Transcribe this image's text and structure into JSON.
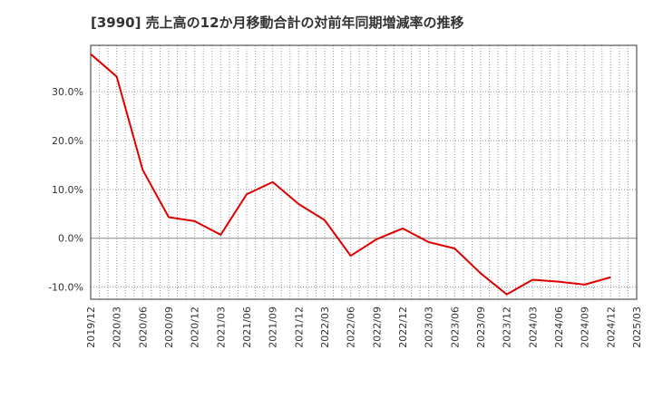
{
  "chart_data": {
    "type": "line",
    "title": "[3990]  売上高の12か月移動合計の対前年同期増減率の推移",
    "xlabel": "",
    "ylabel": "",
    "x_ticks": [
      "2019/12",
      "2020/03",
      "2020/06",
      "2020/09",
      "2020/12",
      "2021/03",
      "2021/06",
      "2021/09",
      "2021/12",
      "2022/03",
      "2022/06",
      "2022/09",
      "2022/12",
      "2023/03",
      "2023/06",
      "2023/09",
      "2023/12",
      "2024/03",
      "2024/06",
      "2024/09",
      "2024/12",
      "2025/03"
    ],
    "y_ticks": [
      {
        "value": 30,
        "label": "30.0%"
      },
      {
        "value": 20,
        "label": "20.0%"
      },
      {
        "value": 10,
        "label": "10.0%"
      },
      {
        "value": 0,
        "label": "0.0%"
      },
      {
        "value": -10,
        "label": "-10.0%"
      }
    ],
    "ylim": [
      -12.5,
      39.5
    ],
    "grid": true,
    "series": [
      {
        "color": "#dd0000",
        "points": [
          {
            "x": "2019/12",
            "y": 37.7
          },
          {
            "x": "2020/03",
            "y": 33.1
          },
          {
            "x": "2020/06",
            "y": 14.0
          },
          {
            "x": "2020/09",
            "y": 4.3
          },
          {
            "x": "2020/12",
            "y": 3.5
          },
          {
            "x": "2021/03",
            "y": 0.7
          },
          {
            "x": "2021/06",
            "y": 9.0
          },
          {
            "x": "2021/09",
            "y": 11.5
          },
          {
            "x": "2021/12",
            "y": 7.0
          },
          {
            "x": "2022/03",
            "y": 3.7
          },
          {
            "x": "2022/06",
            "y": -3.6
          },
          {
            "x": "2022/09",
            "y": -0.2
          },
          {
            "x": "2022/12",
            "y": 2.0
          },
          {
            "x": "2023/03",
            "y": -0.8
          },
          {
            "x": "2023/06",
            "y": -2.1
          },
          {
            "x": "2023/09",
            "y": -7.2
          },
          {
            "x": "2023/12",
            "y": -11.5
          },
          {
            "x": "2024/03",
            "y": -8.5
          },
          {
            "x": "2024/06",
            "y": -8.9
          },
          {
            "x": "2024/09",
            "y": -9.5
          },
          {
            "x": "2024/12",
            "y": -8.0
          }
        ]
      }
    ]
  }
}
